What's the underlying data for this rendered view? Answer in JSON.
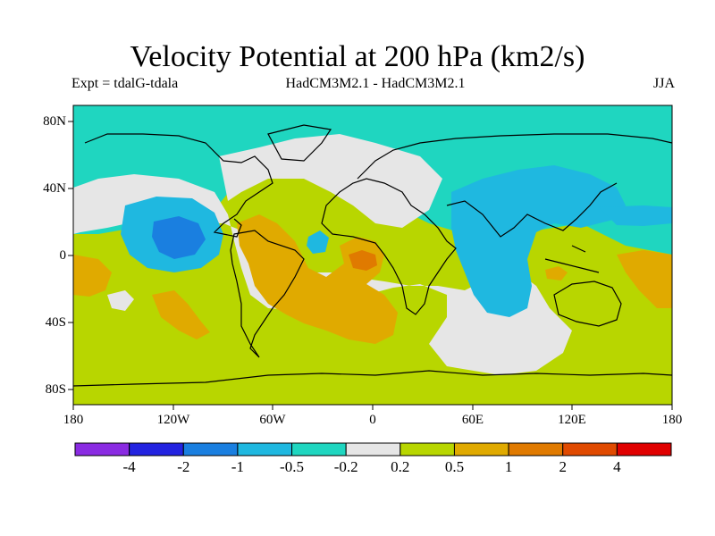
{
  "title": "Velocity Potential at 200 hPa (km2/s)",
  "header": {
    "left": "Expt = tdalG-tdala",
    "center": "HadCM3M2.1 - HadCM3M2.1",
    "right": "JJA"
  },
  "map": {
    "lat_labels": [
      "80N",
      "40N",
      "0",
      "40S",
      "80S"
    ],
    "lon_labels": [
      "180",
      "120W",
      "60W",
      "0",
      "60E",
      "120E",
      "180"
    ]
  },
  "colorbar": {
    "colors": [
      "#8a2be2",
      "#2323e0",
      "#1a7fe0",
      "#1fb8e0",
      "#1fd6c0",
      "#e6e6e6",
      "#b8d600",
      "#e0aa00",
      "#e07a00",
      "#e04a00",
      "#e00000"
    ],
    "labels": [
      "-4",
      "-2",
      "-1",
      "-0.5",
      "-0.2",
      "0.2",
      "0.5",
      "1",
      "2",
      "4"
    ]
  }
}
